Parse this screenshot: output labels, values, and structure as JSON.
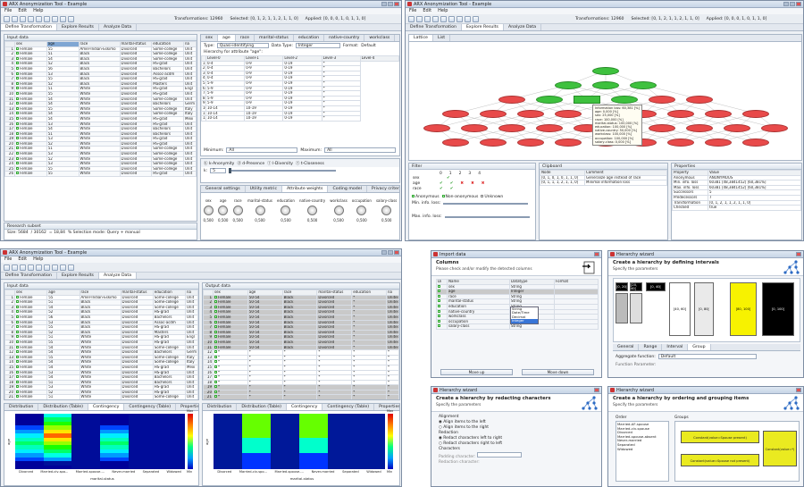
{
  "app_title": "ARX Anonymization Tool - Example",
  "menu": [
    "File",
    "Edit",
    "Help"
  ],
  "status": {
    "transformations": "Transformations: 12960",
    "selected": "Selected: [0, 1, 2, 1, 1, 2, 1, 1, 0]",
    "applied": "Applied: [0, 0, 0, 1, 0, 1, 1, 0]"
  },
  "main_tabs": [
    "Define Transformation",
    "Explore Results",
    "Analyze Data"
  ],
  "input_data_label": "Input data",
  "output_data_label": "Output data",
  "columns": [
    "sex",
    "age",
    "race",
    "marital-status",
    "education",
    "na"
  ],
  "rows": [
    [
      "1",
      "Female",
      "55",
      "Amer-Indian-Eskimo",
      "Divorced",
      "Some-college",
      "Unit"
    ],
    [
      "2",
      "Female",
      "51",
      "Black",
      "Divorced",
      "Some-college",
      "Unit"
    ],
    [
      "3",
      "Female",
      "54",
      "Black",
      "Divorced",
      "Some-college",
      "Unit"
    ],
    [
      "4",
      "Female",
      "52",
      "Black",
      "Divorced",
      "HS-grad",
      "Unit"
    ],
    [
      "5",
      "Female",
      "56",
      "Black",
      "Divorced",
      "Bachelors",
      "Unit"
    ],
    [
      "6",
      "Female",
      "53",
      "Black",
      "Divorced",
      "Assoc-acdm",
      "Unit"
    ],
    [
      "7",
      "Female",
      "55",
      "Black",
      "Divorced",
      "HS-grad",
      "Unit"
    ],
    [
      "8",
      "Female",
      "52",
      "Black",
      "Divorced",
      "Masters",
      "Unit"
    ],
    [
      "9",
      "Female",
      "51",
      "White",
      "Divorced",
      "HS-grad",
      "Engl"
    ],
    [
      "10",
      "Female",
      "55",
      "White",
      "Divorced",
      "HS-grad",
      "Unit"
    ],
    [
      "11",
      "Female",
      "54",
      "White",
      "Divorced",
      "Some-college",
      "Unit"
    ],
    [
      "12",
      "Female",
      "54",
      "White",
      "Divorced",
      "Bachelors",
      "Germ"
    ],
    [
      "13",
      "Female",
      "55",
      "White",
      "Divorced",
      "Some-college",
      "Italy"
    ],
    [
      "14",
      "Female",
      "54",
      "White",
      "Divorced",
      "Some-college",
      "Italy"
    ],
    [
      "15",
      "Female",
      "54",
      "White",
      "Divorced",
      "HS-grad",
      "Mexi"
    ],
    [
      "16",
      "Female",
      "53",
      "White",
      "Divorced",
      "HS-grad",
      "Unit"
    ],
    [
      "17",
      "Female",
      "54",
      "White",
      "Divorced",
      "Bachelors",
      "Unit"
    ],
    [
      "18",
      "Female",
      "51",
      "White",
      "Divorced",
      "Bachelors",
      "Unit"
    ],
    [
      "19",
      "Female",
      "53",
      "White",
      "Divorced",
      "HS-grad",
      "Unit"
    ],
    [
      "20",
      "Female",
      "52",
      "White",
      "Divorced",
      "HS-grad",
      "Unit"
    ],
    [
      "21",
      "Female",
      "51",
      "White",
      "Divorced",
      "Some-college",
      "Unit"
    ],
    [
      "22",
      "Female",
      "53",
      "White",
      "Divorced",
      "Some-college",
      "Unit"
    ],
    [
      "23",
      "Female",
      "52",
      "White",
      "Divorced",
      "Some-college",
      "Unit"
    ],
    [
      "24",
      "Female",
      "53",
      "White",
      "Divorced",
      "Some-college",
      "Unit"
    ],
    [
      "25",
      "Female",
      "55",
      "White",
      "Divorced",
      "Some-college",
      "Unit"
    ],
    [
      "26",
      "Female",
      "55",
      "White",
      "Divorced",
      "HS-grad",
      "Unit"
    ]
  ],
  "research_subset": {
    "label": "Research subset",
    "size": "Size: 5684",
    "of": "/ 30162",
    "pct": "= 18,84",
    "mode": "% Selection mode: Query + manual"
  },
  "attr_tabs": [
    "sex",
    "age",
    "race",
    "marital-status",
    "education",
    "native-country",
    "workclass"
  ],
  "type_row": {
    "type_label": "Type:",
    "type_value": "Quasi-identifying",
    "dtype_label": "Data Type:",
    "dtype_value": "Integer",
    "format_label": "Format:",
    "format_value": "Default"
  },
  "hierarchy_label": "Hierarchy for attribute \"age\":",
  "hier_cols": [
    "Level-0",
    "Level-1",
    "Level-2",
    "Level-3",
    "Level-4"
  ],
  "hier_rows": [
    [
      "1",
      "0-4",
      "0-9",
      "0-19",
      "*"
    ],
    [
      "2",
      "0-4",
      "0-9",
      "0-19",
      "*"
    ],
    [
      "3",
      "0-4",
      "0-9",
      "0-19",
      "*"
    ],
    [
      "4",
      "0-4",
      "0-9",
      "0-19",
      "*"
    ],
    [
      "5",
      "5-9",
      "0-9",
      "0-19",
      "*"
    ],
    [
      "6",
      "5-9",
      "0-9",
      "0-19",
      "*"
    ],
    [
      "7",
      "5-9",
      "0-9",
      "0-19",
      "*"
    ],
    [
      "8",
      "5-9",
      "0-9",
      "0-19",
      "*"
    ],
    [
      "9",
      "5-9",
      "0-9",
      "0-19",
      "*"
    ],
    [
      "10",
      "10-14",
      "10-19",
      "0-19",
      "*"
    ],
    [
      "11",
      "10-14",
      "10-19",
      "0-19",
      "*"
    ],
    [
      "12",
      "10-14",
      "10-19",
      "0-19",
      "*"
    ]
  ],
  "minmax": {
    "min_label": "Minimum:",
    "min_value": "All",
    "max_label": "Maximum:",
    "max_value": "All"
  },
  "privacy": [
    "k-Anonymity",
    "d-Presence",
    "l-Diversity",
    "t-Closeness"
  ],
  "k_label": "k:",
  "k_value": "5",
  "settings_tabs": [
    "General settings",
    "Utility metric",
    "Attribute weights",
    "Coding model",
    "Privacy criteria"
  ],
  "weight_labels": [
    "sex",
    "age",
    "race",
    "marital-status",
    "education",
    "native-country",
    "workclass",
    "occupation",
    "salary-class"
  ],
  "weight_values": [
    "0,500",
    "0,500",
    "0,500",
    "0,500",
    "0,500",
    "0,500",
    "0,500",
    "0,500",
    "0,500"
  ],
  "lattice_tabs": [
    "Lattice",
    "List"
  ],
  "tooltip_lines": [
    "Information loss: 60,381 [%]",
    "age: 0,000 [%]",
    "sex: 25,000 [%]",
    "race: 100,000 [%]",
    "marital-status: 100,000 [%]",
    "education: 100,000 [%]",
    "native-country: 50,000 [%]",
    "workclass: 100,000 [%]",
    "occupation: 100,000 [%]",
    "salary-class: 0,000 [%]"
  ],
  "filter": {
    "label": "Filter",
    "levels": [
      "0",
      "1",
      "2",
      "3",
      "4"
    ],
    "attrs": [
      "sex",
      "age",
      "race"
    ],
    "anonymous": "Anonymous",
    "non_anonymous": "Non-anonymous",
    "unknown": "Unknown",
    "min_loss": "Min. info. loss:",
    "max_loss": "Max. info. loss:"
  },
  "clipboard": {
    "label": "Clipboard",
    "cols": [
      "Node",
      "Comment"
    ],
    "rows": [
      [
        "[0, 1, 0, 1, 0, 1, 1, 0]",
        "Generalize age instead of race"
      ],
      [
        "[0, 1, 1, 1, 2, 1, 1, 0]",
        "Minimal information loss"
      ]
    ]
  },
  "properties": {
    "label": "Properties",
    "cols": [
      "Property",
      "Value"
    ],
    "rows": [
      [
        "Anonymous",
        "ANONYMOUS"
      ],
      [
        "Min. info. loss",
        "60381 [48,3841452] [60,381%]"
      ],
      [
        "Max. info. loss",
        "60381 [48,3841452] [60,381%]"
      ],
      [
        "Successors",
        "5"
      ],
      [
        "Predecessors",
        "7"
      ],
      [
        "Transformation",
        "[0, 1, 2, 1, 1, 2, 1, 1, 0]"
      ],
      [
        "Checked",
        "true"
      ]
    ]
  },
  "out_row": [
    "Female",
    "50-54",
    "Black",
    "Divorced",
    "*",
    "United-"
  ],
  "analysis_tabs": [
    "Distribution",
    "Distribution (Table)",
    "Contingency",
    "Contingency (Table)",
    "Properties"
  ],
  "x_categories": [
    "Divorced",
    "Married-civ-spo...",
    "Married-spouse-...",
    "Never-married",
    "Separated",
    "Widowed"
  ],
  "xaxis_label": "marital-status",
  "yaxis_label": "age",
  "legend_max": "Max",
  "legend_min": "Min",
  "import": {
    "window": "Import data",
    "title": "Columns",
    "subtitle": "Please check and/or modify the detected columns",
    "cols": [
      "Di",
      "Name",
      "Datatype",
      "Format"
    ],
    "rows": [
      [
        "sex",
        "String"
      ],
      [
        "age",
        "Integer"
      ],
      [
        "race",
        "String"
      ],
      [
        "marital-status",
        "String"
      ],
      [
        "education",
        "String"
      ],
      [
        "native-country",
        "String"
      ],
      [
        "workclass",
        "String"
      ],
      [
        "occupation",
        "String"
      ],
      [
        "salary-class",
        "String"
      ]
    ],
    "dropdown": [
      "String",
      "Date/Time",
      "Decimal",
      "Integer"
    ],
    "move_up": "Move up",
    "move_down": "Move down"
  },
  "wiz1": {
    "window": "Hierarchy wizard",
    "title": "Create a hierarchy by defining intervals",
    "subtitle": "Specify the parameters",
    "labels": [
      "[0, 20[",
      "[20, 40[",
      "[0, 40[",
      "[40, 60[",
      "[0, 80[",
      "[80, 100[",
      "[0, 100["
    ],
    "tabs": [
      "General",
      "Range",
      "Interval",
      "Group"
    ],
    "agg_label": "Aggregate function:",
    "agg_value": "Default",
    "func_label": "Function Parameter:"
  },
  "wiz2": {
    "window": "Hierarchy wizard",
    "title": "Create a hierarchy by redacting characters",
    "subtitle": "Specify the parameters",
    "alignment": "Alignment",
    "align_left": "Align items to the left",
    "align_right": "Align items to the right",
    "redaction": "Redaction",
    "red_left": "Redact characters left to right",
    "red_right": "Redact characters right to left",
    "characters": "Characters",
    "padding": "Padding character:",
    "redaction_char": "Redaction character:"
  },
  "wiz3": {
    "window": "Hierarchy wizard",
    "title": "Create a hierarchy by ordering and grouping items",
    "subtitle": "Specify the parameters",
    "order_label": "Order",
    "groups_label": "Groups",
    "order_items": [
      "Married-AF-spouse",
      "Married-civ-spouse",
      "Divorced",
      "Married-spouse-absent",
      "Never-married",
      "Separated",
      "Widowed"
    ],
    "groups": [
      "Constant(value=Spouse present)",
      "Constant(value=Spouse not present)",
      "Constant(value=*)"
    ]
  },
  "colors": {
    "green": "#3ec13e",
    "red": "#e84a4a",
    "yellow": "#f7f200"
  }
}
